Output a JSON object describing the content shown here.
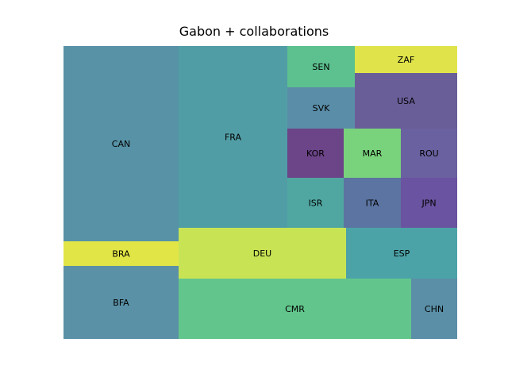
{
  "chart_data": {
    "type": "treemap",
    "title": "Gabon + collaborations",
    "leaves": [
      {
        "label": "CAN",
        "value": 247,
        "color": "#5792a6"
      },
      {
        "label": "FRA",
        "value": 210,
        "color": "#519da5"
      },
      {
        "label": "SEN",
        "value": 34,
        "color": "#5cc08f"
      },
      {
        "label": "ZAF",
        "value": 22,
        "color": "#e0e44a"
      },
      {
        "label": "SVK",
        "value": 35,
        "color": "#5a8ea8"
      },
      {
        "label": "USA",
        "value": 58,
        "color": "#6a5e98"
      },
      {
        "label": "KOR",
        "value": 31,
        "color": "#6c4488"
      },
      {
        "label": "MAR",
        "value": 31,
        "color": "#79d27c"
      },
      {
        "label": "ROU",
        "value": 31,
        "color": "#6a61a0"
      },
      {
        "label": "ISR",
        "value": 28,
        "color": "#50a7a1"
      },
      {
        "label": "ITA",
        "value": 28,
        "color": "#5b74a1"
      },
      {
        "label": "JPN",
        "value": 28,
        "color": "#6a53a0"
      },
      {
        "label": "BRA",
        "value": 27,
        "color": "#e2e546"
      },
      {
        "label": "BFA",
        "value": 77,
        "color": "#5a91a6"
      },
      {
        "label": "DEU",
        "value": 99,
        "color": "#c8e454"
      },
      {
        "label": "ESP",
        "value": 65,
        "color": "#4ca3a7"
      },
      {
        "label": "CMR",
        "value": 163,
        "color": "#62c68c"
      },
      {
        "label": "CHN",
        "value": 30,
        "color": "#5a8fa7"
      }
    ]
  }
}
